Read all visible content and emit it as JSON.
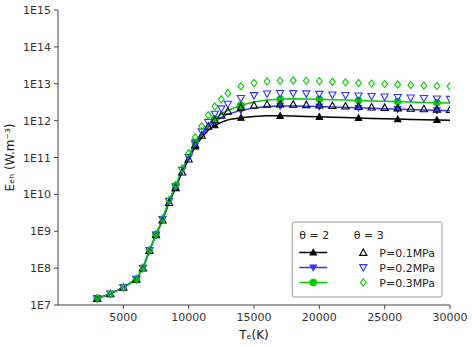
{
  "chart_data": {
    "type": "line",
    "xlabel": "Tₑ(K)",
    "ylabel": "Eₑₕ (W.m⁻³)",
    "log": "y",
    "grid": false,
    "legend": "lower right",
    "legend_title": "θ = 2       θ = 3",
    "xlim": [
      0,
      30000
    ],
    "xticks": [
      5000,
      10000,
      15000,
      20000,
      25000,
      30000
    ],
    "ylim": [
      10000000.0,
      1000000000000000.0
    ],
    "yticks": [
      {
        "value": 10000000.0,
        "label": "1E7"
      },
      {
        "value": 100000000.0,
        "label": "1E8"
      },
      {
        "value": 1000000000.0,
        "label": "1E9"
      },
      {
        "value": 10000000000.0,
        "label": "1E10"
      },
      {
        "value": 100000000000.0,
        "label": "1E11"
      },
      {
        "value": 1000000000000.0,
        "label": "1E12"
      },
      {
        "value": 10000000000000.0,
        "label": "1E13"
      },
      {
        "value": 100000000000000.0,
        "label": "1E14"
      },
      {
        "value": 1000000000000000.0,
        "label": "1E15"
      }
    ],
    "x": [
      3000,
      4000,
      5000,
      6000,
      6500,
      7000,
      7500,
      8000,
      8500,
      9000,
      9500,
      10000,
      10500,
      11000,
      11500,
      12000,
      12500,
      13000,
      14000,
      15000,
      16000,
      17000,
      18000,
      19000,
      20000,
      21000,
      22000,
      23000,
      24000,
      25000,
      26000,
      27000,
      28000,
      29000,
      30000
    ],
    "series": [
      {
        "name": "P=0.1MPa",
        "color": "#000000",
        "marker": "triangle-up",
        "line_style": "solid",
        "values": [
          15000000.0,
          20000000.0,
          30000000.0,
          50000000.0,
          100000000.0,
          300000000.0,
          800000000.0,
          2000000000.0,
          6000000000.0,
          15000000000.0,
          40000000000.0,
          90000000000.0,
          200000000000.0,
          350000000000.0,
          550000000000.0,
          750000000000.0,
          900000000000.0,
          1050000000000.0,
          1200000000000.0,
          1300000000000.0,
          1350000000000.0,
          1350000000000.0,
          1330000000000.0,
          1300000000000.0,
          1270000000000.0,
          1240000000000.0,
          1210000000000.0,
          1180000000000.0,
          1150000000000.0,
          1120000000000.0,
          1100000000000.0,
          1080000000000.0,
          1060000000000.0,
          1040000000000.0,
          1020000000000.0
        ]
      },
      {
        "name": "P=0.2MPa",
        "color": "#3333ff",
        "marker": "triangle-down",
        "line_style": "solid",
        "values": [
          15000000.0,
          20000000.0,
          30000000.0,
          50000000.0,
          100000000.0,
          300000000.0,
          800000000.0,
          2100000000.0,
          6500000000.0,
          16000000000.0,
          45000000000.0,
          100000000000.0,
          230000000000.0,
          400000000000.0,
          650000000000.0,
          950000000000.0,
          1200000000000.0,
          1500000000000.0,
          1900000000000.0,
          2200000000000.0,
          2400000000000.0,
          2500000000000.0,
          2500000000000.0,
          2450000000000.0,
          2400000000000.0,
          2350000000000.0,
          2280000000000.0,
          2220000000000.0,
          2160000000000.0,
          2100000000000.0,
          2050000000000.0,
          2000000000000.0,
          1950000000000.0,
          1900000000000.0,
          1850000000000.0
        ]
      },
      {
        "name": "P=0.3MPa",
        "color": "#00cc00",
        "marker": "circle",
        "line_style": "solid",
        "values": [
          15000000.0,
          20000000.0,
          30000000.0,
          50000000.0,
          100000000.0,
          300000000.0,
          800000000.0,
          2200000000.0,
          7000000000.0,
          17000000000.0,
          50000000000.0,
          110000000000.0,
          260000000000.0,
          450000000000.0,
          750000000000.0,
          1100000000000.0,
          1500000000000.0,
          1900000000000.0,
          2600000000000.0,
          3200000000000.0,
          3600000000000.0,
          3800000000000.0,
          3900000000000.0,
          3850000000000.0,
          3800000000000.0,
          3700000000000.0,
          3600000000000.0,
          3500000000000.0,
          3420000000000.0,
          3350000000000.0,
          3280000000000.0,
          3200000000000.0,
          3120000000000.0,
          3050000000000.0,
          3000000000000.0
        ]
      },
      {
        "color": "#000000",
        "marker": "open-triangle-up",
        "line_style": "none",
        "values": [
          15000000.0,
          20000000.0,
          30000000.0,
          50000000.0,
          100000000.0,
          300000000.0,
          800000000.0,
          2000000000.0,
          6000000000.0,
          15000000000.0,
          40000000000.0,
          90000000000.0,
          220000000000.0,
          400000000000.0,
          700000000000.0,
          1050000000000.0,
          1400000000000.0,
          1800000000000.0,
          2300000000000.0,
          2600000000000.0,
          2750000000000.0,
          2800000000000.0,
          2750000000000.0,
          2700000000000.0,
          2630000000000.0,
          2550000000000.0,
          2470000000000.0,
          2400000000000.0,
          2330000000000.0,
          2270000000000.0,
          2200000000000.0,
          2140000000000.0,
          2080000000000.0,
          2030000000000.0,
          1980000000000.0
        ]
      },
      {
        "color": "#3333ff",
        "marker": "open-triangle-down",
        "line_style": "none",
        "values": [
          15000000.0,
          20000000.0,
          30000000.0,
          50000000.0,
          100000000.0,
          300000000.0,
          800000000.0,
          2100000000.0,
          6500000000.0,
          16000000000.0,
          45000000000.0,
          100000000000.0,
          250000000000.0,
          500000000000.0,
          900000000000.0,
          1500000000000.0,
          2100000000000.0,
          2800000000000.0,
          4000000000000.0,
          4800000000000.0,
          5300000000000.0,
          5500000000000.0,
          5450000000000.0,
          5350000000000.0,
          5200000000000.0,
          5000000000000.0,
          4850000000000.0,
          4700000000000.0,
          4550000000000.0,
          4400000000000.0,
          4280000000000.0,
          4150000000000.0,
          4020000000000.0,
          3900000000000.0,
          3800000000000.0
        ]
      },
      {
        "color": "#00cc00",
        "marker": "open-diamond",
        "line_style": "none",
        "values": [
          15000000.0,
          20000000.0,
          30000000.0,
          50000000.0,
          100000000.0,
          300000000.0,
          800000000.0,
          2200000000.0,
          7000000000.0,
          18000000000.0,
          50000000000.0,
          130000000000.0,
          350000000000.0,
          700000000000.0,
          1400000000000.0,
          2400000000000.0,
          3800000000000.0,
          5500000000000.0,
          8500000000000.0,
          10500000000000.0,
          11500000000000.0,
          12000000000000.0,
          12200000000000.0,
          12000000000000.0,
          11700000000000.0,
          11300000000000.0,
          10900000000000.0,
          10500000000000.0,
          10100000000000.0,
          9800000000000.0,
          9500000000000.0,
          9200000000000.0,
          8950000000000.0,
          8700000000000.0,
          8500000000000.0
        ]
      }
    ]
  }
}
